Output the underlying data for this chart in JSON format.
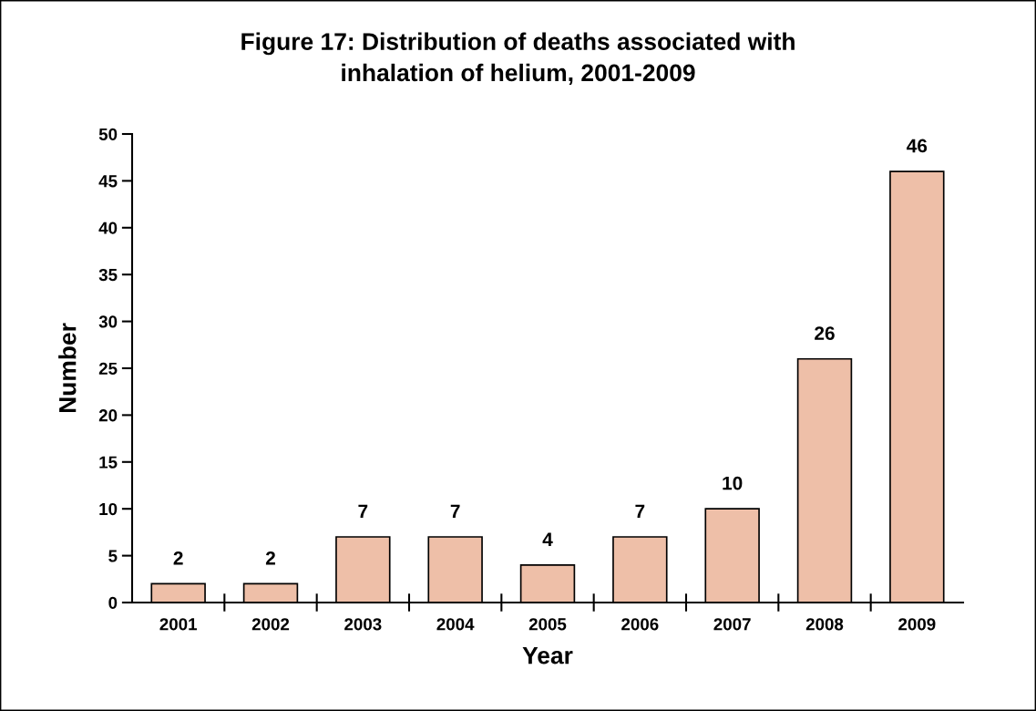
{
  "chart_data": {
    "type": "bar",
    "title": "Figure 17: Distribution of deaths associated with\ninhalation of helium, 2001-2009",
    "xlabel": "Year",
    "ylabel": "Number",
    "categories": [
      "2001",
      "2002",
      "2003",
      "2004",
      "2005",
      "2006",
      "2007",
      "2008",
      "2009"
    ],
    "values": [
      2,
      2,
      7,
      7,
      4,
      7,
      10,
      26,
      46
    ],
    "color": "#eebfa8",
    "ylim": [
      0,
      50
    ],
    "yticks": [
      0,
      5,
      10,
      15,
      20,
      25,
      30,
      35,
      40,
      45,
      50
    ],
    "data_labels": true,
    "grid": false,
    "legend": false
  }
}
